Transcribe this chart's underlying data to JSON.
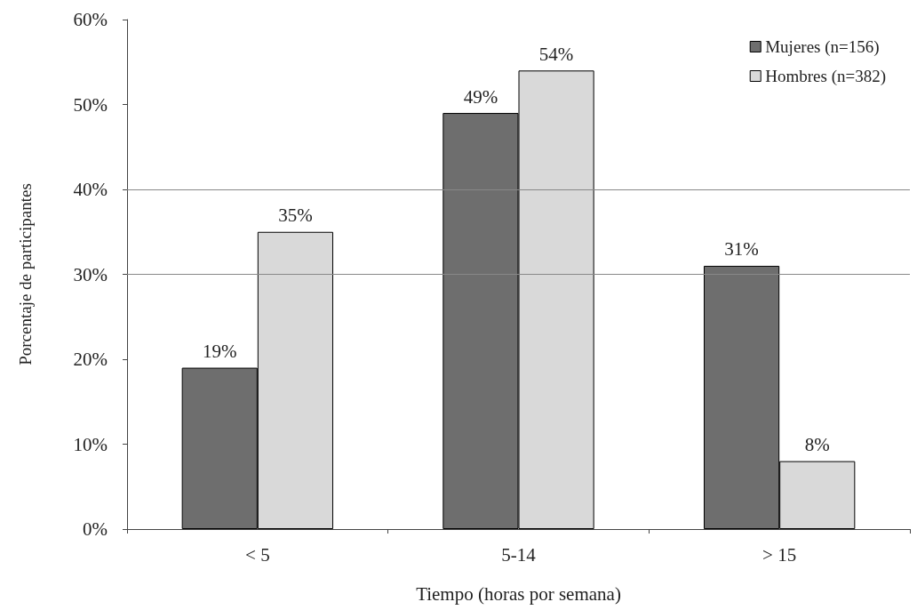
{
  "chart_data": {
    "type": "bar",
    "xlabel": "Tiempo (horas por semana)",
    "ylabel": "Porcentaje de participantes",
    "categories": [
      "< 5",
      "5-14",
      "> 15"
    ],
    "series": [
      {
        "name": "Mujeres (n=156)",
        "color": "#6e6e6e",
        "values": [
          19,
          49,
          31
        ],
        "value_labels": [
          "19%",
          "49%",
          "31%"
        ]
      },
      {
        "name": "Hombres (n=382)",
        "color": "#d9d9d9",
        "values": [
          35,
          54,
          8
        ],
        "value_labels": [
          "35%",
          "54%",
          "8%"
        ]
      }
    ],
    "ylim": [
      0,
      60
    ],
    "yticks": [
      {
        "value": 0,
        "label": "0%"
      },
      {
        "value": 10,
        "label": "10%"
      },
      {
        "value": 20,
        "label": "20%"
      },
      {
        "value": 30,
        "label": "30%"
      },
      {
        "value": 40,
        "label": "40%"
      },
      {
        "value": 50,
        "label": "50%"
      },
      {
        "value": 60,
        "label": "60%"
      }
    ],
    "ref_lines": [
      {
        "axis": "y",
        "value": 30,
        "color": "#888888"
      },
      {
        "axis": "y",
        "value": 40,
        "color": "#888888"
      }
    ],
    "legend": "top right",
    "grid": false
  }
}
